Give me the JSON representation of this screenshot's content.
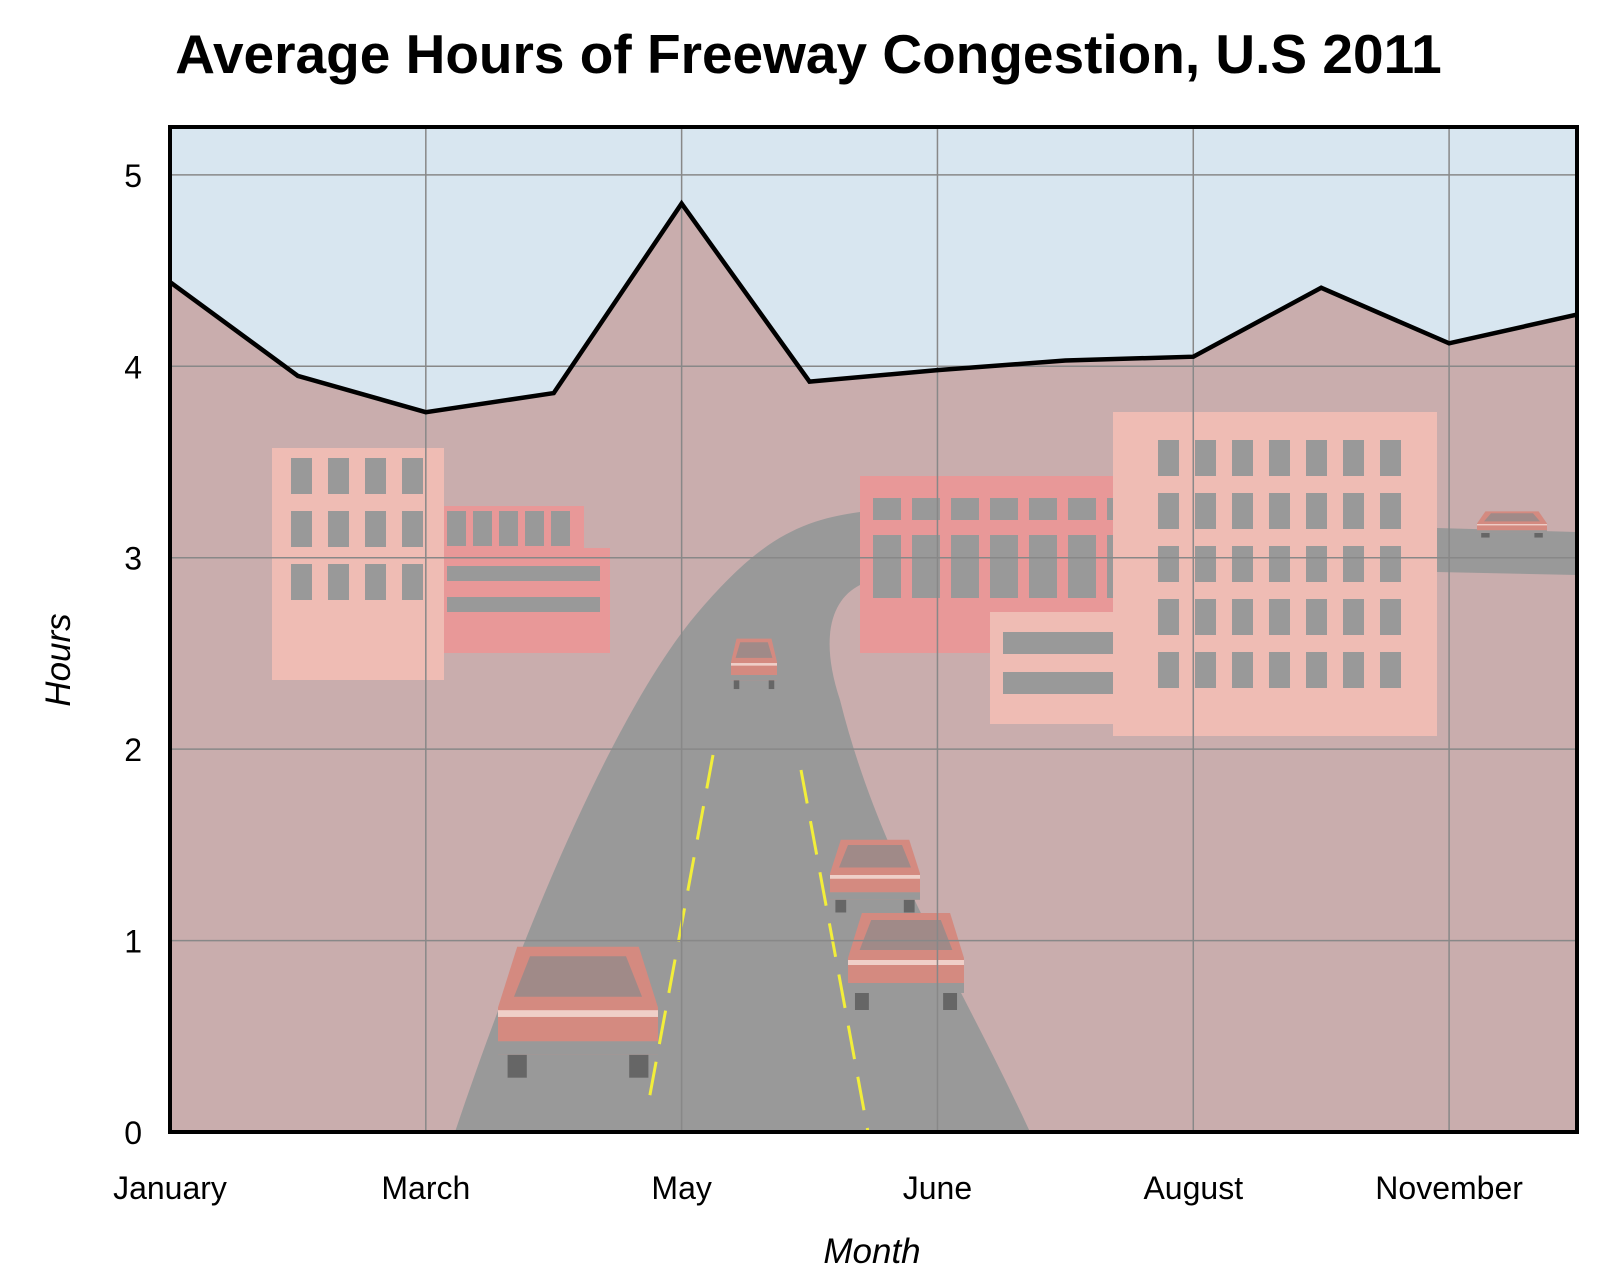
{
  "chart_data": {
    "type": "area",
    "title": "Average Hours of Freeway Congestion, U.S 2011",
    "xlabel": "Month",
    "ylabel": "Hours",
    "x_tick_labels": [
      "January",
      "March",
      "May",
      "June",
      "August",
      "November"
    ],
    "y_tick_labels": [
      "0",
      "1",
      "2",
      "3",
      "4",
      "5"
    ],
    "ylim": [
      0,
      5.25
    ],
    "grid": true,
    "legend": "none",
    "series": [
      {
        "values": [
          4.44,
          3.95,
          3.76,
          3.86,
          4.85,
          3.92,
          3.98,
          4.03,
          4.05,
          4.41,
          4.12,
          4.27
        ]
      }
    ],
    "colors": {
      "sky": "#d8e6f0",
      "area": "#c9adad",
      "line": "#000000",
      "grid": "#888888",
      "road": "#999999",
      "building_light": "#efbcb4",
      "building_dark": "#e89898",
      "window": "#999999",
      "car": "#d48a80",
      "lane": "#f2ee3a"
    }
  }
}
